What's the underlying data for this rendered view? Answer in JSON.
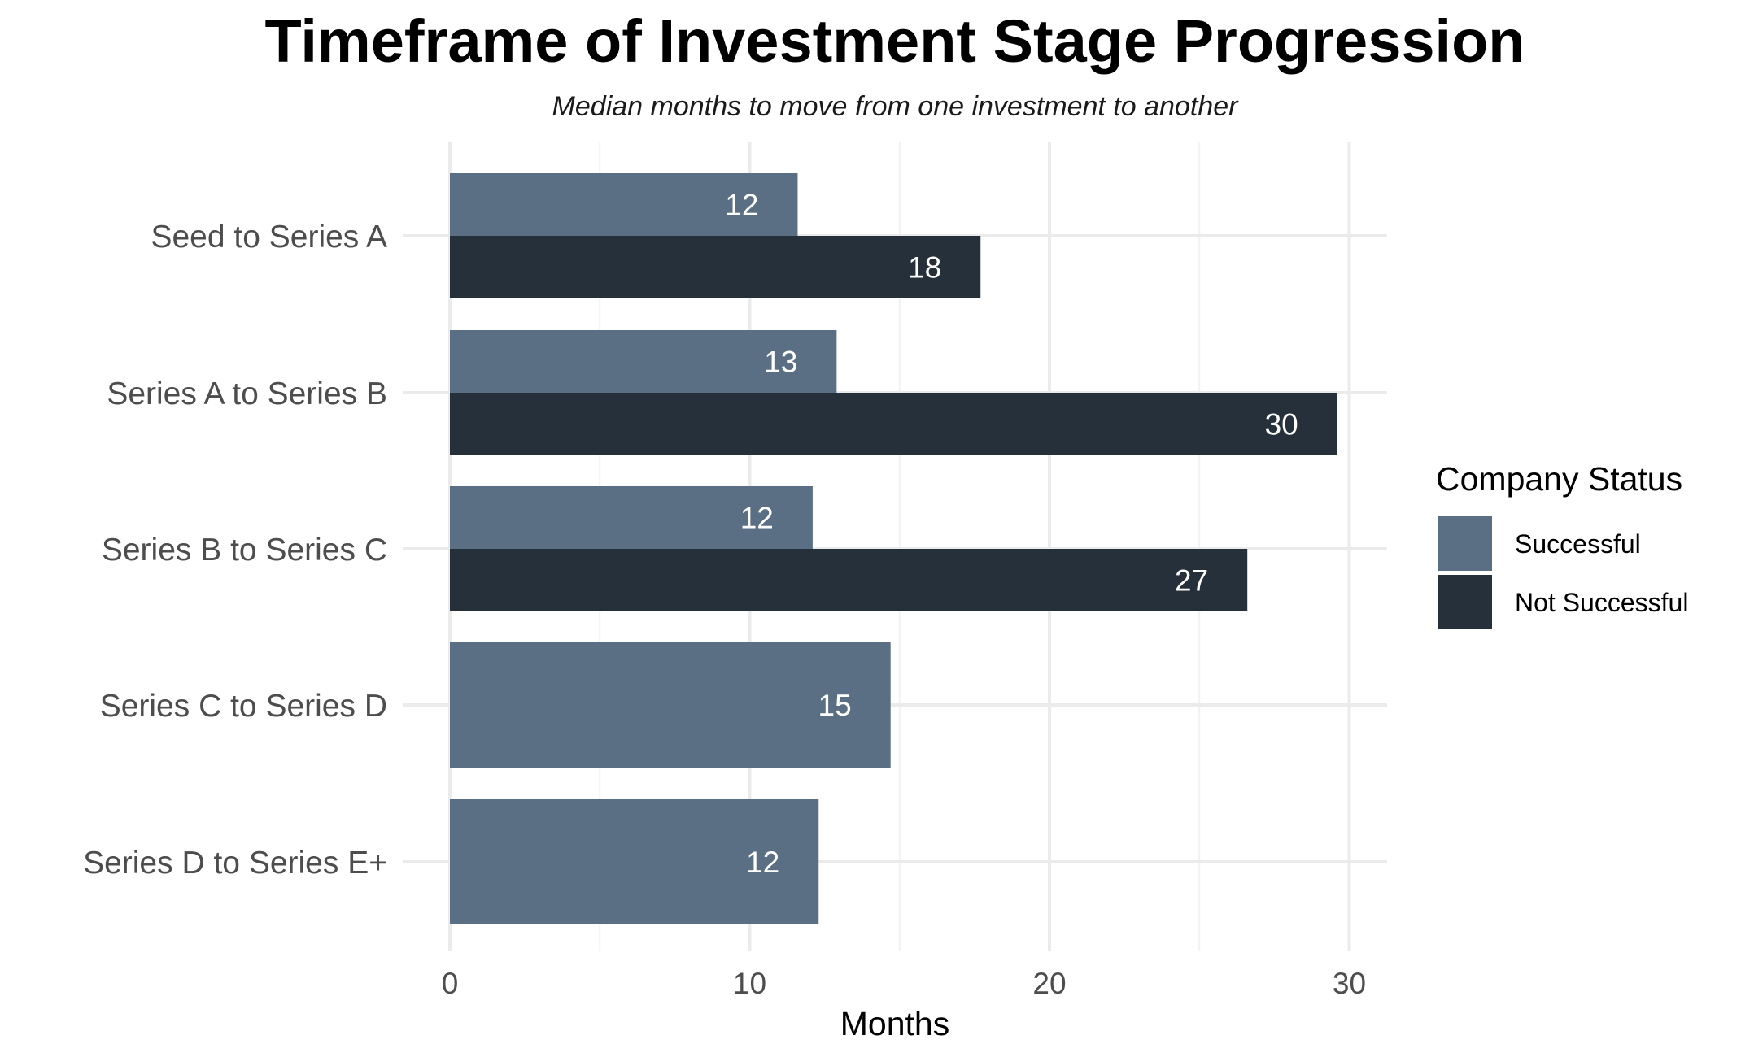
{
  "chart_data": {
    "type": "bar",
    "orientation": "horizontal",
    "title": "Timeframe of Investment Stage Progression",
    "subtitle": "Median months to move from one investment to another",
    "xlabel": "Months",
    "ylabel": "",
    "xlim": [
      0,
      31
    ],
    "xticks": [
      0,
      10,
      20,
      30
    ],
    "grid": true,
    "categories": [
      "Seed to Series A",
      "Series A to Series B",
      "Series B to Series C",
      "Series C to Series D",
      "Series D to Series E+"
    ],
    "series": [
      {
        "name": "Successful",
        "color": "#5a6f84",
        "values": [
          11.6,
          12.9,
          12.1,
          14.7,
          12.3
        ],
        "labels": [
          "12",
          "13",
          "12",
          "15",
          "12"
        ]
      },
      {
        "name": "Not Successful",
        "color": "#26303a",
        "values": [
          17.7,
          29.6,
          26.6,
          null,
          null
        ],
        "labels": [
          "18",
          "30",
          "27",
          "",
          ""
        ]
      }
    ],
    "legend": {
      "title": "Company Status",
      "position": "right"
    }
  }
}
